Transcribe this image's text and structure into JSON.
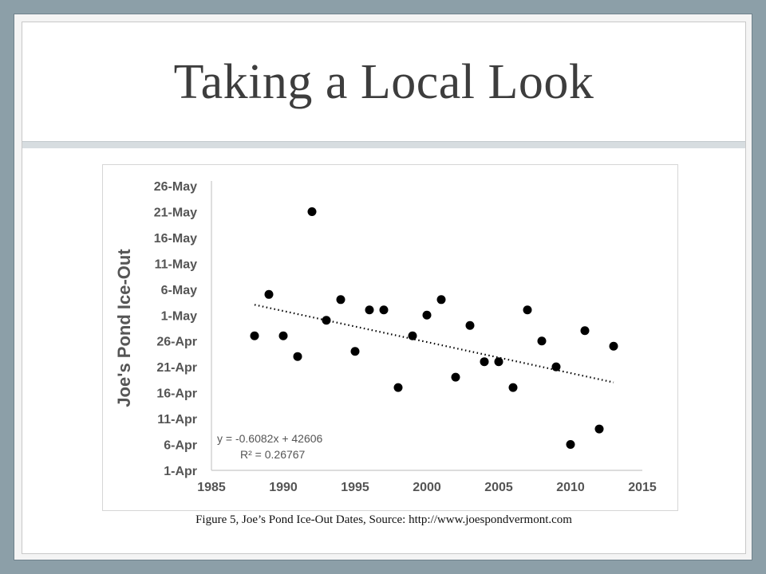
{
  "slide": {
    "title": "Taking a Local Look",
    "caption": "Figure 5, Joe’s Pond Ice-Out Dates, Source: http://www.joespondvermont.com"
  },
  "chart_data": {
    "type": "scatter",
    "title": "",
    "xlabel": "",
    "ylabel": "Joe's Pond Ice-Out",
    "xlim": [
      1985,
      2015
    ],
    "x_ticks": [
      "1985",
      "1990",
      "1995",
      "2000",
      "2005",
      "2010",
      "2015"
    ],
    "y_ticks": [
      "1-Apr",
      "6-Apr",
      "11-Apr",
      "16-Apr",
      "21-Apr",
      "26-Apr",
      "1-May",
      "6-May",
      "11-May",
      "16-May",
      "21-May",
      "26-May"
    ],
    "ylim": [
      "1-Apr",
      "26-May"
    ],
    "grid": false,
    "points": [
      {
        "x": 1988,
        "y": "27-Apr"
      },
      {
        "x": 1989,
        "y": "5-May"
      },
      {
        "x": 1990,
        "y": "27-Apr"
      },
      {
        "x": 1991,
        "y": "23-Apr"
      },
      {
        "x": 1992,
        "y": "21-May"
      },
      {
        "x": 1993,
        "y": "30-Apr"
      },
      {
        "x": 1994,
        "y": "4-May"
      },
      {
        "x": 1995,
        "y": "24-Apr"
      },
      {
        "x": 1996,
        "y": "2-May"
      },
      {
        "x": 1997,
        "y": "2-May"
      },
      {
        "x": 1998,
        "y": "17-Apr"
      },
      {
        "x": 1999,
        "y": "27-Apr"
      },
      {
        "x": 2000,
        "y": "1-May"
      },
      {
        "x": 2001,
        "y": "4-May"
      },
      {
        "x": 2002,
        "y": "19-Apr"
      },
      {
        "x": 2003,
        "y": "29-Apr"
      },
      {
        "x": 2004,
        "y": "22-Apr"
      },
      {
        "x": 2005,
        "y": "22-Apr"
      },
      {
        "x": 2006,
        "y": "17-Apr"
      },
      {
        "x": 2007,
        "y": "2-May"
      },
      {
        "x": 2008,
        "y": "26-Apr"
      },
      {
        "x": 2009,
        "y": "21-Apr"
      },
      {
        "x": 2010,
        "y": "6-Apr"
      },
      {
        "x": 2011,
        "y": "28-Apr"
      },
      {
        "x": 2012,
        "y": "9-Apr"
      },
      {
        "x": 2013,
        "y": "25-Apr"
      }
    ],
    "trendline": {
      "style": "dotted",
      "from": {
        "x": 1988,
        "y": "3-May"
      },
      "to": {
        "x": 2013,
        "y": "18-Apr"
      },
      "equation": "y = -0.6082x + 42606",
      "r_squared": "R² = 0.26767"
    },
    "colors": {
      "points": "#000000",
      "axis": "#c8c8c8",
      "text": "#555555"
    }
  }
}
